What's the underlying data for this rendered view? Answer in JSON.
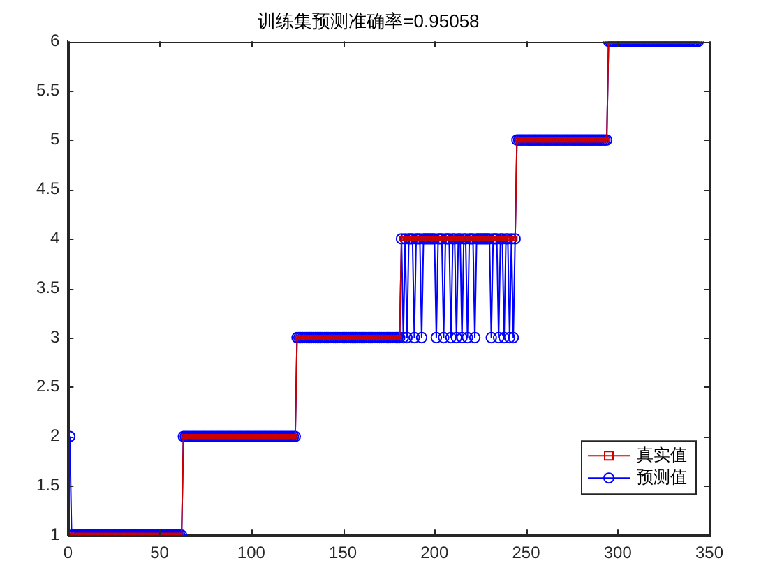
{
  "chart_data": {
    "type": "line",
    "title": "训练集预测准确率=0.95058",
    "xlim": [
      0,
      350
    ],
    "xticks": [
      0,
      50,
      100,
      150,
      200,
      250,
      300,
      350
    ],
    "ylim": [
      1,
      6
    ],
    "yticks": [
      1,
      1.5,
      2,
      2.5,
      3,
      3.5,
      4,
      4.5,
      5,
      5.5,
      6
    ],
    "grid": false,
    "legend": "bottom right",
    "x": [
      1,
      2,
      3,
      4,
      5,
      6,
      7,
      8,
      9,
      10,
      11,
      12,
      13,
      14,
      15,
      16,
      17,
      18,
      19,
      20,
      21,
      22,
      23,
      24,
      25,
      26,
      27,
      28,
      29,
      30,
      31,
      32,
      33,
      34,
      35,
      36,
      37,
      38,
      39,
      40,
      41,
      42,
      43,
      44,
      45,
      46,
      47,
      48,
      49,
      50,
      51,
      52,
      53,
      54,
      55,
      56,
      57,
      58,
      59,
      60,
      61,
      62,
      63,
      64,
      65,
      66,
      67,
      68,
      69,
      70,
      71,
      72,
      73,
      74,
      75,
      76,
      77,
      78,
      79,
      80,
      81,
      82,
      83,
      84,
      85,
      86,
      87,
      88,
      89,
      90,
      91,
      92,
      93,
      94,
      95,
      96,
      97,
      98,
      99,
      100,
      101,
      102,
      103,
      104,
      105,
      106,
      107,
      108,
      109,
      110,
      111,
      112,
      113,
      114,
      115,
      116,
      117,
      118,
      119,
      120,
      121,
      122,
      123,
      124,
      125,
      126,
      127,
      128,
      129,
      130,
      131,
      132,
      133,
      134,
      135,
      136,
      137,
      138,
      139,
      140,
      141,
      142,
      143,
      144,
      145,
      146,
      147,
      148,
      149,
      150,
      151,
      152,
      153,
      154,
      155,
      156,
      157,
      158,
      159,
      160,
      161,
      162,
      163,
      164,
      165,
      166,
      167,
      168,
      169,
      170,
      171,
      172,
      173,
      174,
      175,
      176,
      177,
      178,
      179,
      180,
      181,
      182,
      183,
      184,
      185,
      186,
      187,
      188,
      189,
      190,
      191,
      192,
      193,
      194,
      195,
      196,
      197,
      198,
      199,
      200,
      201,
      202,
      203,
      204,
      205,
      206,
      207,
      208,
      209,
      210,
      211,
      212,
      213,
      214,
      215,
      216,
      217,
      218,
      219,
      220,
      221,
      222,
      223,
      224,
      225,
      226,
      227,
      228,
      229,
      230,
      231,
      232,
      233,
      234,
      235,
      236,
      237,
      238,
      239,
      240,
      241,
      242,
      243,
      244,
      245,
      246,
      247,
      248,
      249,
      250,
      251,
      252,
      253,
      254,
      255,
      256,
      257,
      258,
      259,
      260,
      261,
      262,
      263,
      264,
      265,
      266,
      267,
      268,
      269,
      270,
      271,
      272,
      273,
      274,
      275,
      276,
      277,
      278,
      279,
      280,
      281,
      282,
      283,
      284,
      285,
      286,
      287,
      288,
      289,
      290,
      291,
      292,
      293,
      294,
      295,
      296,
      297,
      298,
      299,
      300,
      301,
      302,
      303,
      304,
      305,
      306,
      307,
      308,
      309,
      310,
      311,
      312,
      313,
      314,
      315,
      316,
      317,
      318,
      319,
      320,
      321,
      322,
      323,
      324,
      325,
      326,
      327,
      328,
      329,
      330,
      331,
      332,
      333,
      334,
      335,
      336,
      337,
      338,
      339,
      340,
      341,
      342,
      343,
      344
    ],
    "series": [
      {
        "name": "真实值",
        "color": "#cc0000",
        "marker": "square",
        "values": [
          1,
          1,
          1,
          1,
          1,
          1,
          1,
          1,
          1,
          1,
          1,
          1,
          1,
          1,
          1,
          1,
          1,
          1,
          1,
          1,
          1,
          1,
          1,
          1,
          1,
          1,
          1,
          1,
          1,
          1,
          1,
          1,
          1,
          1,
          1,
          1,
          1,
          1,
          1,
          1,
          1,
          1,
          1,
          1,
          1,
          1,
          1,
          1,
          1,
          1,
          1,
          1,
          1,
          1,
          1,
          1,
          1,
          1,
          1,
          1,
          1,
          1,
          2,
          2,
          2,
          2,
          2,
          2,
          2,
          2,
          2,
          2,
          2,
          2,
          2,
          2,
          2,
          2,
          2,
          2,
          2,
          2,
          2,
          2,
          2,
          2,
          2,
          2,
          2,
          2,
          2,
          2,
          2,
          2,
          2,
          2,
          2,
          2,
          2,
          2,
          2,
          2,
          2,
          2,
          2,
          2,
          2,
          2,
          2,
          2,
          2,
          2,
          2,
          2,
          2,
          2,
          2,
          2,
          2,
          2,
          2,
          2,
          2,
          2,
          3,
          3,
          3,
          3,
          3,
          3,
          3,
          3,
          3,
          3,
          3,
          3,
          3,
          3,
          3,
          3,
          3,
          3,
          3,
          3,
          3,
          3,
          3,
          3,
          3,
          3,
          3,
          3,
          3,
          3,
          3,
          3,
          3,
          3,
          3,
          3,
          3,
          3,
          3,
          3,
          3,
          3,
          3,
          3,
          3,
          3,
          3,
          3,
          3,
          3,
          3,
          3,
          3,
          3,
          3,
          3,
          3,
          4,
          4,
          4,
          4,
          4,
          4,
          4,
          4,
          4,
          4,
          4,
          4,
          4,
          4,
          4,
          4,
          4,
          4,
          4,
          4,
          4,
          4,
          4,
          4,
          4,
          4,
          4,
          4,
          4,
          4,
          4,
          4,
          4,
          4,
          4,
          4,
          4,
          4,
          4,
          4,
          4,
          4,
          4,
          4,
          4,
          4,
          4,
          4,
          4,
          4,
          4,
          4,
          4,
          4,
          4,
          4,
          4,
          4,
          4,
          4,
          4,
          4,
          4,
          5,
          5,
          5,
          5,
          5,
          5,
          5,
          5,
          5,
          5,
          5,
          5,
          5,
          5,
          5,
          5,
          5,
          5,
          5,
          5,
          5,
          5,
          5,
          5,
          5,
          5,
          5,
          5,
          5,
          5,
          5,
          5,
          5,
          5,
          5,
          5,
          5,
          5,
          5,
          5,
          5,
          5,
          5,
          5,
          5,
          5,
          5,
          5,
          5,
          5,
          6,
          6,
          6,
          6,
          6,
          6,
          6,
          6,
          6,
          6,
          6,
          6,
          6,
          6,
          6,
          6,
          6,
          6,
          6,
          6,
          6,
          6,
          6,
          6,
          6,
          6,
          6,
          6,
          6,
          6,
          6,
          6,
          6,
          6,
          6,
          6,
          6,
          6,
          6,
          6,
          6,
          6,
          6,
          6,
          6,
          6,
          6,
          6,
          6,
          6
        ]
      },
      {
        "name": "预测值",
        "color": "#0000ff",
        "marker": "circle",
        "values": [
          2,
          1,
          1,
          1,
          1,
          1,
          1,
          1,
          1,
          1,
          1,
          1,
          1,
          1,
          1,
          1,
          1,
          1,
          1,
          1,
          1,
          1,
          1,
          1,
          1,
          1,
          1,
          1,
          1,
          1,
          1,
          1,
          1,
          1,
          1,
          1,
          1,
          1,
          1,
          1,
          1,
          1,
          1,
          1,
          1,
          1,
          1,
          1,
          1,
          1,
          1,
          1,
          1,
          1,
          1,
          1,
          1,
          1,
          1,
          1,
          1,
          1,
          2,
          2,
          2,
          2,
          2,
          2,
          2,
          2,
          2,
          2,
          2,
          2,
          2,
          2,
          2,
          2,
          2,
          2,
          2,
          2,
          2,
          2,
          2,
          2,
          2,
          2,
          2,
          2,
          2,
          2,
          2,
          2,
          2,
          2,
          2,
          2,
          2,
          2,
          2,
          2,
          2,
          2,
          2,
          2,
          2,
          2,
          2,
          2,
          2,
          2,
          2,
          2,
          2,
          2,
          2,
          2,
          2,
          2,
          2,
          2,
          2,
          2,
          3,
          3,
          3,
          3,
          3,
          3,
          3,
          3,
          3,
          3,
          3,
          3,
          3,
          3,
          3,
          3,
          3,
          3,
          3,
          3,
          3,
          3,
          3,
          3,
          3,
          3,
          3,
          3,
          3,
          3,
          3,
          3,
          3,
          3,
          3,
          3,
          3,
          3,
          3,
          3,
          3,
          3,
          3,
          3,
          3,
          3,
          3,
          3,
          3,
          3,
          3,
          3,
          3,
          3,
          3,
          3,
          3,
          4,
          3,
          4,
          3,
          4,
          4,
          4,
          3,
          4,
          4,
          4,
          3,
          4,
          4,
          4,
          4,
          4,
          4,
          4,
          3,
          4,
          4,
          4,
          3,
          4,
          4,
          4,
          3,
          4,
          4,
          3,
          4,
          4,
          3,
          4,
          4,
          3,
          4,
          4,
          4,
          3,
          4,
          4,
          4,
          4,
          4,
          4,
          4,
          4,
          3,
          4,
          4,
          4,
          3,
          4,
          4,
          3,
          4,
          4,
          3,
          4,
          3,
          4,
          5,
          5,
          5,
          5,
          5,
          5,
          5,
          5,
          5,
          5,
          5,
          5,
          5,
          5,
          5,
          5,
          5,
          5,
          5,
          5,
          5,
          5,
          5,
          5,
          5,
          5,
          5,
          5,
          5,
          5,
          5,
          5,
          5,
          5,
          5,
          5,
          5,
          5,
          5,
          5,
          5,
          5,
          5,
          5,
          5,
          5,
          5,
          5,
          5,
          5,
          6,
          6,
          6,
          6,
          6,
          6,
          6,
          6,
          6,
          6,
          6,
          6,
          6,
          6,
          6,
          6,
          6,
          6,
          6,
          6,
          6,
          6,
          6,
          6,
          6,
          6,
          6,
          6,
          6,
          6,
          6,
          6,
          6,
          6,
          6,
          6,
          6,
          6,
          6,
          6,
          6,
          6,
          6,
          6,
          6,
          6,
          6,
          6,
          6,
          6
        ]
      }
    ]
  }
}
